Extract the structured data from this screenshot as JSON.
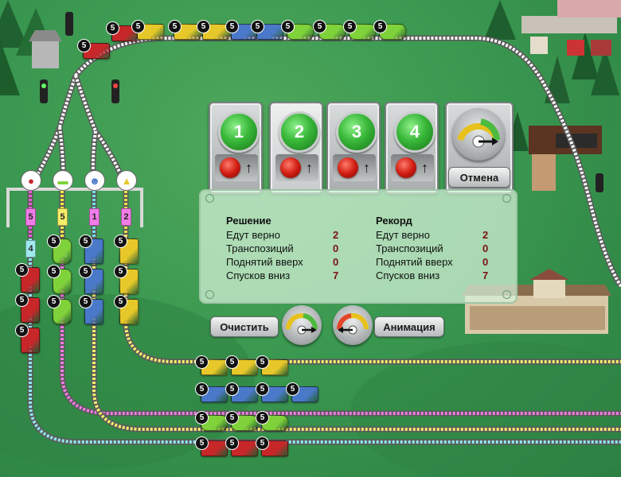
{
  "buttons": {
    "routes": [
      {
        "number": "1"
      },
      {
        "number": "2"
      },
      {
        "number": "3"
      },
      {
        "number": "4"
      }
    ],
    "cancel_label": "Отмена",
    "clear_label": "Очистить",
    "animation_label": "Анимация"
  },
  "stats": {
    "solution": {
      "title": "Решение",
      "rows": [
        {
          "label": "Едут верно",
          "value": "2"
        },
        {
          "label": "Транспозиций",
          "value": "0"
        },
        {
          "label": "Поднятий вверх",
          "value": "0"
        },
        {
          "label": "Спусков вниз",
          "value": "7"
        }
      ]
    },
    "record": {
      "title": "Рекорд",
      "rows": [
        {
          "label": "Едут верно",
          "value": "2"
        },
        {
          "label": "Транспозиций",
          "value": "0"
        },
        {
          "label": "Поднятий вверх",
          "value": "0"
        },
        {
          "label": "Спусков вниз",
          "value": "7"
        }
      ]
    }
  },
  "wagon_count_label": "5",
  "top_train": [
    {
      "type": "red",
      "color": "#c8272a"
    },
    {
      "type": "red",
      "color": "#c8272a"
    },
    {
      "type": "yellow",
      "color": "#e6c82a"
    },
    {
      "type": "yellow",
      "color": "#e6c82a"
    },
    {
      "type": "yellow",
      "color": "#e6c82a"
    },
    {
      "type": "blue",
      "color": "#4a79c9"
    },
    {
      "type": "blue",
      "color": "#4a79c9"
    },
    {
      "type": "green",
      "color": "#7fd23a"
    },
    {
      "type": "green",
      "color": "#7fd23a"
    },
    {
      "type": "green",
      "color": "#7fd23a"
    },
    {
      "type": "green",
      "color": "#7fd23a"
    }
  ],
  "sidings": [
    {
      "icon": "tomato-icon",
      "icon_glyph": "●",
      "color": "#ee58d6",
      "labels": [
        "5",
        "4"
      ],
      "label_colors": [
        "#f07ce6",
        "#9ee9ee"
      ],
      "wagon_type": "red",
      "wagon_color": "#c8272a"
    },
    {
      "icon": "green-tank-icon",
      "icon_glyph": "▬",
      "color": "#f2e94a",
      "labels": [
        "5",
        "1"
      ],
      "label_colors": [
        "#f6ee6a",
        "#9ee9ee"
      ],
      "wagon_type": "green",
      "wagon_color": "#7fd23a"
    },
    {
      "icon": "worker-icon",
      "icon_glyph": "☻",
      "color": "#6fe0ea",
      "labels": [
        "1"
      ],
      "label_colors": [
        "#f07ce6"
      ],
      "wagon_type": "blue",
      "wagon_color": "#4a79c9"
    },
    {
      "icon": "sand-pile-icon",
      "icon_glyph": "▲",
      "color": "#e8de4a",
      "labels": [
        "2"
      ],
      "label_colors": [
        "#f07ce6"
      ],
      "wagon_type": "yellow",
      "wagon_color": "#e6c82a"
    }
  ],
  "bottom_tracks": [
    {
      "color": "#f4ec6e",
      "wagon_type": "yellow",
      "wagon_color": "#e6c82a"
    },
    {
      "color": "#f07ce6",
      "wagon_type": "blue",
      "wagon_color": "#4a79c9"
    },
    {
      "color": "#f4ec6e",
      "wagon_type": "green",
      "wagon_color": "#7fd23a"
    },
    {
      "color": "#8ee6ee",
      "wagon_type": "red",
      "wagon_color": "#c8272a"
    }
  ],
  "colors": {
    "grass": "#3a9850",
    "track_white": "#ffffff",
    "track_pink": "#f07ce6",
    "track_yellow": "#f4ec6e",
    "track_cyan": "#8ee6ee"
  }
}
